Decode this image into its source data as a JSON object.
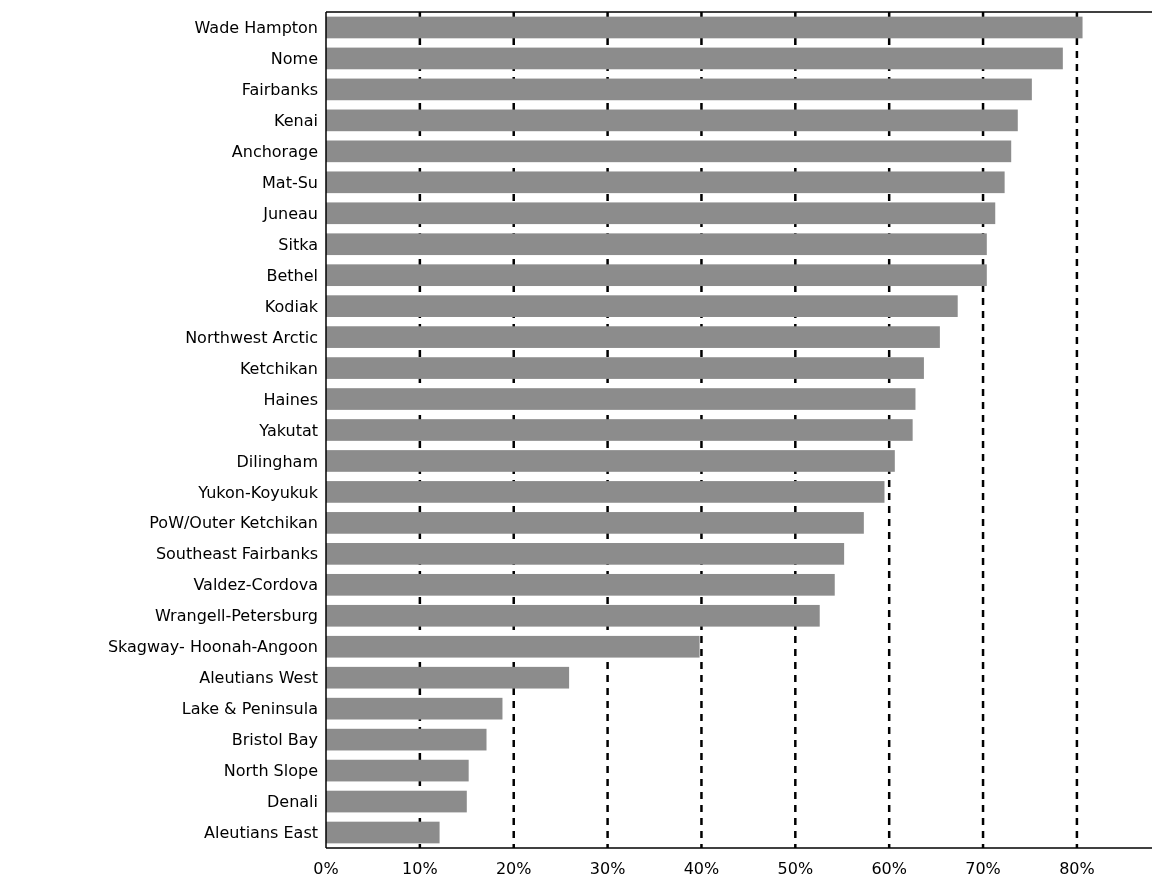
{
  "chart_data": {
    "type": "bar",
    "orientation": "horizontal",
    "categories": [
      "Wade Hampton",
      "Nome",
      "Fairbanks",
      "Kenai",
      "Anchorage",
      "Mat-Su",
      "Juneau",
      "Sitka",
      "Bethel",
      "Kodiak",
      "Northwest Arctic",
      "Ketchikan",
      "Haines",
      "Yakutat",
      "Dilingham",
      "Yukon-Koyukuk",
      "PoW/Outer Ketchikan",
      "Southeast Fairbanks",
      "Valdez-Cordova",
      "Wrangell-Petersburg",
      "Skagway- Hoonah-Angoon",
      "Aleutians West",
      "Lake & Peninsula",
      "Bristol Bay",
      "North Slope",
      "Denali",
      "Aleutians East"
    ],
    "values": [
      80.6,
      78.5,
      75.2,
      73.7,
      73.0,
      72.3,
      71.3,
      70.4,
      70.4,
      67.3,
      65.4,
      63.7,
      62.8,
      62.5,
      60.6,
      59.5,
      57.3,
      55.2,
      54.2,
      52.6,
      39.8,
      25.9,
      18.8,
      17.1,
      15.2,
      15.0,
      12.1
    ],
    "color": "#8c8c8c",
    "xlim": [
      0,
      88
    ],
    "xticks": [
      {
        "value": 0,
        "label": "0%"
      },
      {
        "value": 10,
        "label": "10%"
      },
      {
        "value": 20,
        "label": "20%"
      },
      {
        "value": 30,
        "label": "30%"
      },
      {
        "value": 40,
        "label": "40%"
      },
      {
        "value": 50,
        "label": "50%"
      },
      {
        "value": 60,
        "label": "60%"
      },
      {
        "value": 70,
        "label": "70%"
      },
      {
        "value": 80,
        "label": "80%"
      }
    ],
    "grid": "x"
  }
}
